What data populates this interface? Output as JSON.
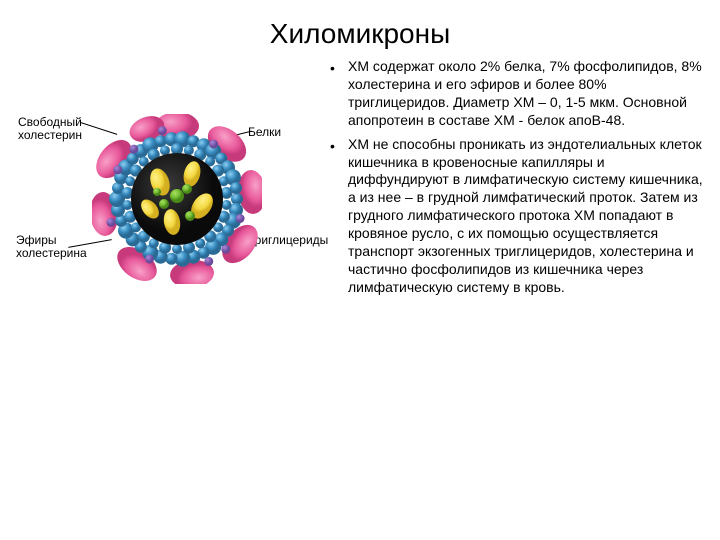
{
  "title": "Хиломикроны",
  "bullets": [
    "ХМ содержат около 2% белка, 7% фосфолипидов, 8% холестерина и его эфиров и более 80% триглицеридов. Диаметр ХМ – 0, 1-5 мкм. Основной апопротеин в составе ХМ - белок апоВ-48.",
    "ХМ не способны проникать из эндотелиальных клеток кишечника в кровеносные капилляры и диффундируют в лимфатическую систему кишечника, а из нее – в грудной лимфатический проток. Затем из грудного лимфатического протока ХМ попадают в кровяное русло, с их помощью осуществляется транспорт экзогенных триглицеридов, холестерина и частично фосфолипидов из кишечника через лимфатическую систему в кровь."
  ],
  "labels": {
    "free_cholesterol": "Свободный холестерин",
    "proteins": "Белки",
    "cholesterol_esters": "Эфиры холестерина",
    "triglycerides": "Триглицериды"
  },
  "colors": {
    "outer_pink": "#e85a9b",
    "outer_pink_dark": "#c73a7b",
    "phospho_blue": "#3a8fc4",
    "phospho_blue_light": "#5eb0dc",
    "core_dark": "#1a1a1a",
    "trig_yellow": "#f4d943",
    "trig_yellow_dark": "#d4b020",
    "ester_green": "#6fb82e",
    "ester_green_dark": "#4a8818",
    "chol_purple": "#6a4a9a"
  }
}
